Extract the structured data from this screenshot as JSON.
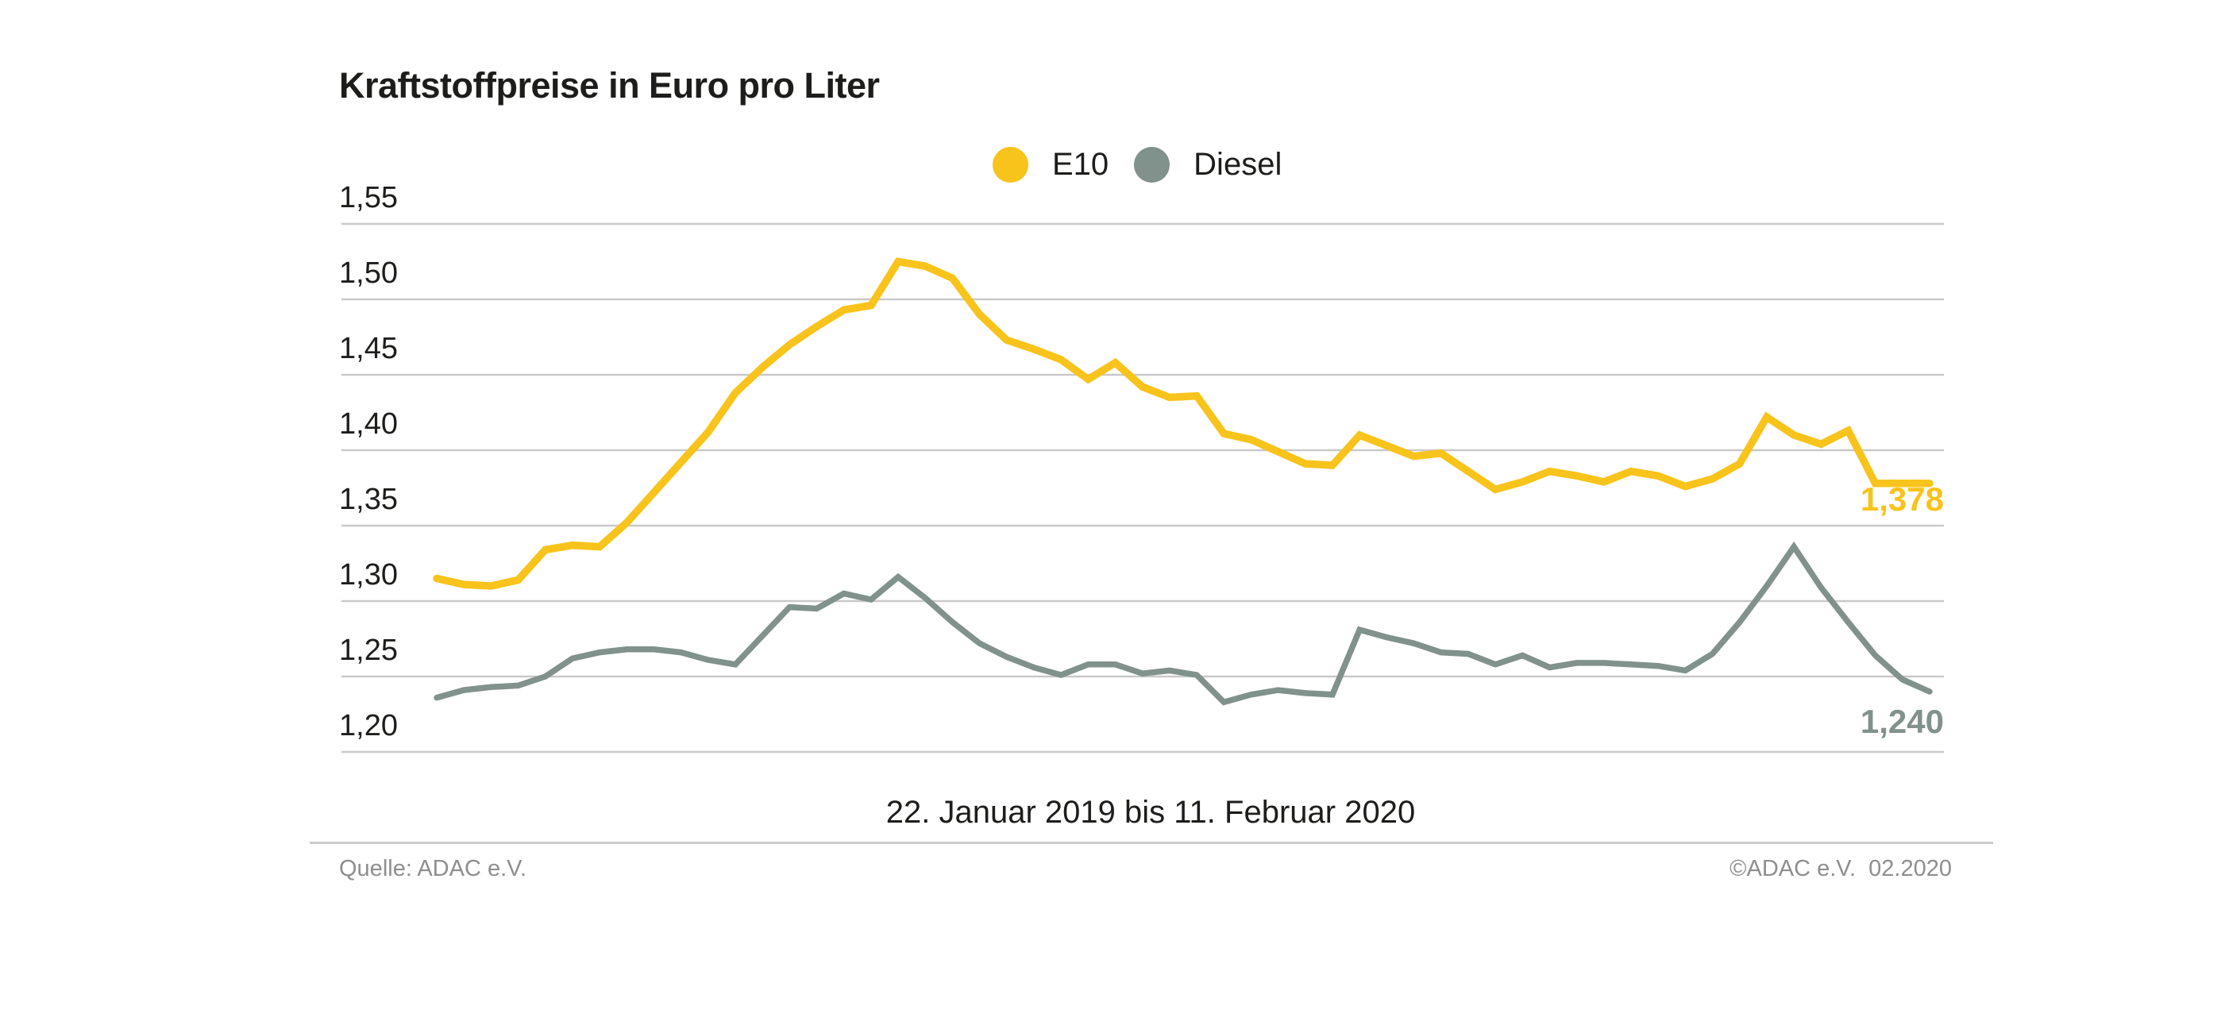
{
  "title": "Kraftstoffpreise in Euro pro Liter",
  "legend": [
    {
      "label": "E10",
      "color": "#f8c31b"
    },
    {
      "label": "Diesel",
      "color": "#81918c"
    }
  ],
  "footer": {
    "source": "Quelle: ADAC e.V.",
    "copyright": "©ADAC e.V.  02.2020"
  },
  "chart_data": {
    "type": "line",
    "title": "Kraftstoffpreise in Euro pro Liter",
    "x_caption": "22. Januar 2019 bis 11. Februar 2020",
    "ylim": [
      1.2,
      1.55
    ],
    "grid": true,
    "grid_color": "#c9c9c9",
    "legend_position": "top-center",
    "y_ticks": [
      {
        "value": 1.55,
        "label": "1,55"
      },
      {
        "value": 1.5,
        "label": "1,50"
      },
      {
        "value": 1.45,
        "label": "1,45"
      },
      {
        "value": 1.4,
        "label": "1,40"
      },
      {
        "value": 1.35,
        "label": "1,35"
      },
      {
        "value": 1.3,
        "label": "1,30"
      },
      {
        "value": 1.25,
        "label": "1,25"
      },
      {
        "value": 1.2,
        "label": "1,20"
      }
    ],
    "series": [
      {
        "name": "E10",
        "color": "#f8c31b",
        "end_label": "1,378",
        "end_value": 1.378,
        "values": [
          1.315,
          1.311,
          1.31,
          1.314,
          1.334,
          1.337,
          1.336,
          1.352,
          1.372,
          1.392,
          1.412,
          1.438,
          1.455,
          1.47,
          1.482,
          1.493,
          1.496,
          1.525,
          1.522,
          1.514,
          1.49,
          1.473,
          1.467,
          1.46,
          1.447,
          1.458,
          1.442,
          1.435,
          1.436,
          1.411,
          1.407,
          1.399,
          1.391,
          1.39,
          1.41,
          1.403,
          1.396,
          1.398,
          1.386,
          1.374,
          1.379,
          1.386,
          1.383,
          1.379,
          1.386,
          1.383,
          1.376,
          1.381,
          1.391,
          1.422,
          1.41,
          1.404,
          1.413,
          1.378,
          1.378,
          1.378
        ]
      },
      {
        "name": "Diesel",
        "color": "#81918c",
        "end_label": "1,240",
        "end_value": 1.24,
        "values": [
          1.236,
          1.241,
          1.243,
          1.244,
          1.25,
          1.262,
          1.266,
          1.268,
          1.268,
          1.266,
          1.261,
          1.258,
          1.277,
          1.296,
          1.295,
          1.305,
          1.301,
          1.316,
          1.302,
          1.286,
          1.272,
          1.263,
          1.256,
          1.251,
          1.258,
          1.258,
          1.252,
          1.254,
          1.251,
          1.233,
          1.238,
          1.241,
          1.239,
          1.238,
          1.281,
          1.276,
          1.272,
          1.266,
          1.265,
          1.258,
          1.264,
          1.256,
          1.259,
          1.259,
          1.258,
          1.257,
          1.254,
          1.265,
          1.286,
          1.31,
          1.336,
          1.309,
          1.286,
          1.264,
          1.248,
          1.24
        ]
      }
    ]
  }
}
